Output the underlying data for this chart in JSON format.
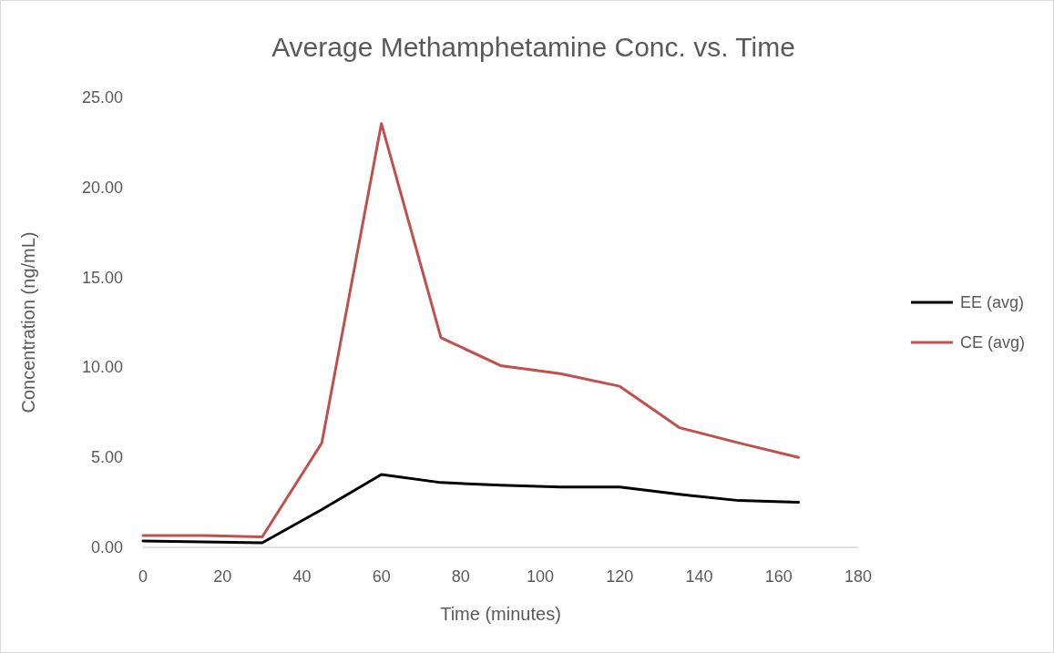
{
  "chart_data": {
    "type": "line",
    "title": "Average Methamphetamine Conc. vs. Time",
    "xlabel": "Time (minutes)",
    "ylabel": "Concentration (ng/mL)",
    "x": [
      0,
      15,
      30,
      45,
      60,
      75,
      90,
      105,
      120,
      135,
      150,
      165
    ],
    "series": [
      {
        "name": "EE (avg)",
        "color": "#000000",
        "values": [
          0.35,
          0.3,
          0.25,
          2.1,
          4.05,
          3.6,
          3.45,
          3.35,
          3.35,
          2.95,
          2.6,
          2.5
        ]
      },
      {
        "name": "CE (avg)",
        "color": "#c0504d",
        "values": [
          0.66,
          0.66,
          0.58,
          5.8,
          23.55,
          11.65,
          10.1,
          9.65,
          8.95,
          6.65,
          5.8,
          5.0
        ]
      }
    ],
    "xlim": [
      0,
      180
    ],
    "xticks": [
      0,
      20,
      40,
      60,
      80,
      100,
      120,
      140,
      160,
      180
    ],
    "ylim": [
      0,
      25
    ],
    "yticks": [
      {
        "value": 0,
        "label": "0.00"
      },
      {
        "value": 5,
        "label": "5.00"
      },
      {
        "value": 10,
        "label": "10.00"
      },
      {
        "value": 15,
        "label": "15.00"
      },
      {
        "value": 20,
        "label": "20.00"
      },
      {
        "value": 25,
        "label": "25.00"
      }
    ],
    "grid": false,
    "legend": "right",
    "marker": "none",
    "line_style": "solid"
  }
}
